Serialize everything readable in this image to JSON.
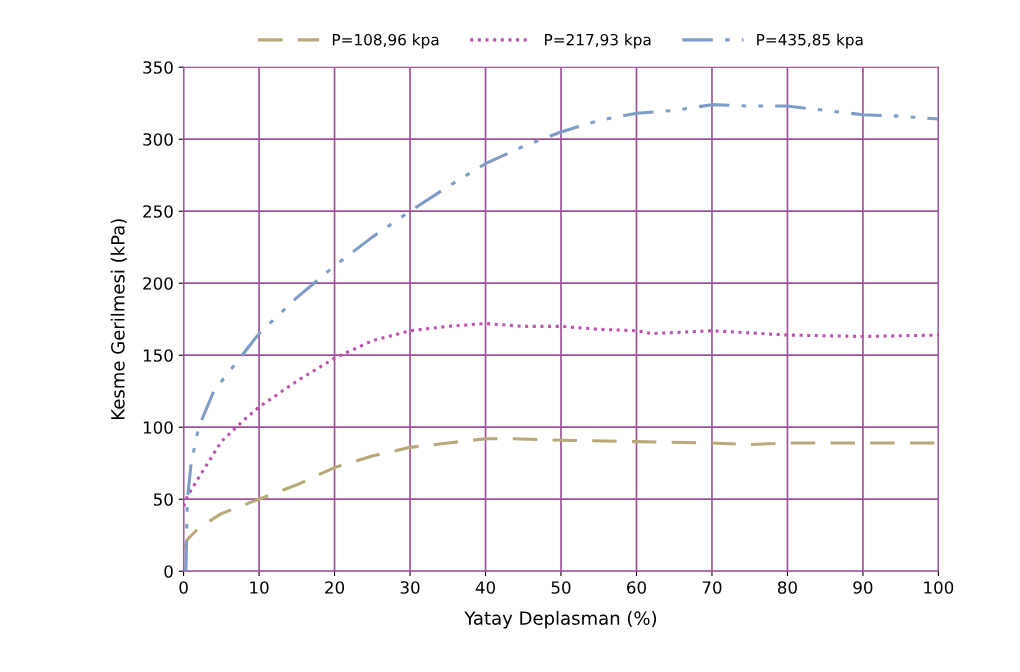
{
  "chart_data": {
    "type": "line",
    "xlabel": "Yatay Deplasman (%)",
    "ylabel": "Kesme Gerilmesi (kPa)",
    "xlim": [
      0,
      100
    ],
    "xticks": [
      0,
      10,
      20,
      30,
      40,
      50,
      60,
      70,
      80,
      90,
      100
    ],
    "ylim": [
      0,
      350
    ],
    "yticks": [
      0,
      50,
      100,
      150,
      200,
      250,
      300,
      350
    ],
    "grid": true,
    "legend": "top",
    "marker": "none",
    "series": [
      {
        "name": "P=108,96 kpa",
        "color": "#b8a878",
        "line_style": "dashed",
        "x": [
          0,
          0.5,
          2,
          5,
          10,
          15,
          20,
          25,
          30,
          35,
          40,
          43,
          50,
          60,
          70,
          75,
          80,
          90,
          100
        ],
        "values": [
          15,
          22,
          30,
          40,
          50,
          60,
          72,
          80,
          86,
          89,
          92,
          92,
          91,
          90,
          89,
          88,
          89,
          89,
          89
        ]
      },
      {
        "name": "P=217,93 kpa",
        "color": "#c050b0",
        "line_style": "dotted",
        "x": [
          0,
          0.5,
          2,
          5,
          8,
          10,
          15,
          20,
          25,
          30,
          35,
          40,
          45,
          50,
          55,
          60,
          62,
          70,
          80,
          90,
          100
        ],
        "values": [
          45,
          52,
          65,
          90,
          105,
          114,
          132,
          148,
          160,
          167,
          170,
          172,
          170,
          170,
          168,
          167,
          165,
          167,
          164,
          163,
          164
        ]
      },
      {
        "name": "P=435,85 kpa",
        "color": "#7d9cc8",
        "line_style": "dashdot",
        "x": [
          0.3,
          0.5,
          1,
          2,
          4,
          7,
          10,
          15,
          20,
          25,
          30,
          35,
          40,
          45,
          50,
          55,
          60,
          65,
          70,
          75,
          80,
          85,
          90,
          95,
          100
        ],
        "values": [
          0,
          50,
          75,
          100,
          125,
          145,
          165,
          190,
          212,
          232,
          250,
          267,
          283,
          295,
          305,
          313,
          318,
          320,
          324,
          323,
          323,
          320,
          317,
          316,
          314
        ]
      }
    ]
  }
}
